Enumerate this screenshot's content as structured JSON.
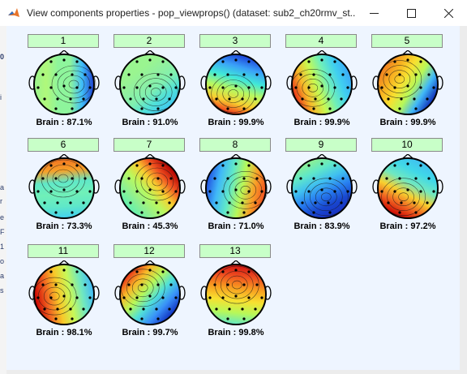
{
  "window": {
    "title": "View components properties - pop_viewprops() (dataset: sub2_ch20rmv_st...",
    "minimize_icon": "minimize-icon",
    "maximize_icon": "maximize-icon",
    "close_icon": "close-icon"
  },
  "components": [
    {
      "label": "1",
      "brain": "Brain : 87.1%",
      "brain_percent": 87.1,
      "colors": [
        "#9af590",
        "#b0f87a",
        "#8ef59c",
        "#8ef59c",
        "#3fbdf8",
        "#1f3fd0"
      ]
    },
    {
      "label": "2",
      "brain": "Brain : 91.0%",
      "brain_percent": 91.0,
      "colors": [
        "#9af590",
        "#9af590",
        "#90f0a0",
        "#80f0b0",
        "#50e0d8",
        "#40c8f0"
      ]
    },
    {
      "label": "3",
      "brain": "Brain : 99.9%",
      "brain_percent": 99.9,
      "colors": [
        "#1a3fd8",
        "#3aa0f8",
        "#40e8d8",
        "#b8f860",
        "#f8d030",
        "#f03018"
      ]
    },
    {
      "label": "4",
      "brain": "Brain : 99.9%",
      "brain_percent": 99.9,
      "colors": [
        "#3aa8f8",
        "#40d0f0",
        "#70f0b8",
        "#c8f850",
        "#f8b828",
        "#e83018"
      ]
    },
    {
      "label": "5",
      "brain": "Brain : 99.9%",
      "brain_percent": 99.9,
      "colors": [
        "#1030b8",
        "#40b8f8",
        "#b8f858",
        "#f8e030",
        "#f8b020",
        "#f08020"
      ]
    },
    {
      "label": "6",
      "brain": "Brain : 73.3%",
      "brain_percent": 73.3,
      "colors": [
        "#40d0f0",
        "#60e8c8",
        "#70f0b8",
        "#60e8c8",
        "#f8a028",
        "#f07020"
      ]
    },
    {
      "label": "7",
      "brain": "Brain : 45.3%",
      "brain_percent": 45.3,
      "colors": [
        "#60f0b0",
        "#90f090",
        "#b8f860",
        "#f8d030",
        "#f05020",
        "#b00000"
      ]
    },
    {
      "label": "8",
      "brain": "Brain : 71.0%",
      "brain_percent": 71.0,
      "colors": [
        "#2050e0",
        "#40b8f8",
        "#60e8c8",
        "#b8f858",
        "#f8a028",
        "#f05020"
      ]
    },
    {
      "label": "9",
      "brain": "Brain : 83.9%",
      "brain_percent": 83.9,
      "colors": [
        "#90f090",
        "#60e8c8",
        "#40c0f0",
        "#2880f0",
        "#1848d0",
        "#1830c0"
      ]
    },
    {
      "label": "10",
      "brain": "Brain : 97.2%",
      "brain_percent": 97.2,
      "colors": [
        "#40c0f0",
        "#40d8e8",
        "#70e8c0",
        "#f8d030",
        "#f06020",
        "#c80000"
      ]
    },
    {
      "label": "11",
      "brain": "Brain : 98.1%",
      "brain_percent": 98.1,
      "colors": [
        "#40b8f8",
        "#70e8c0",
        "#c8f858",
        "#f8c828",
        "#f06020",
        "#c80000"
      ]
    },
    {
      "label": "12",
      "brain": "Brain : 99.7%",
      "brain_percent": 99.7,
      "colors": [
        "#1030c0",
        "#3890f8",
        "#50e0d8",
        "#b8f858",
        "#f8b828",
        "#e83018"
      ]
    },
    {
      "label": "13",
      "brain": "Brain : 99.8%",
      "brain_percent": 99.8,
      "colors": [
        "#60e8c8",
        "#b8f858",
        "#f8e030",
        "#f8a020",
        "#f05020",
        "#d01010"
      ]
    }
  ]
}
